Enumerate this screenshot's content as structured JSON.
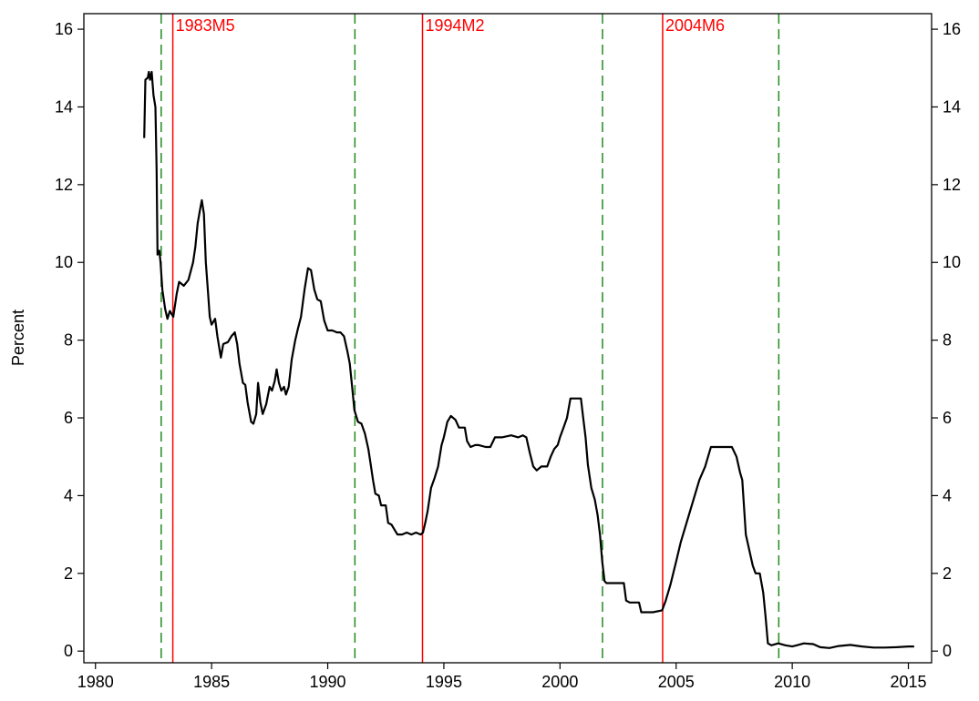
{
  "chart_data": {
    "type": "line",
    "title": "",
    "xlabel": "",
    "ylabel": "Percent",
    "xlim": [
      1979.5,
      2016.0
    ],
    "ylim": [
      -0.3,
      16.4
    ],
    "x_ticks": [
      1980,
      1985,
      1990,
      1995,
      2000,
      2005,
      2010,
      2015
    ],
    "y_ticks": [
      0,
      2,
      4,
      6,
      8,
      10,
      12,
      14,
      16
    ],
    "y_axis_right_duplicate": true,
    "grid": false,
    "legend": "none",
    "series": [
      {
        "color": "#000000",
        "points": [
          [
            1982.1,
            13.2
          ],
          [
            1982.15,
            14.7
          ],
          [
            1982.25,
            14.75
          ],
          [
            1982.3,
            14.9
          ],
          [
            1982.35,
            14.7
          ],
          [
            1982.42,
            14.9
          ],
          [
            1982.5,
            14.3
          ],
          [
            1982.58,
            14.0
          ],
          [
            1982.63,
            12.4
          ],
          [
            1982.67,
            10.2
          ],
          [
            1982.75,
            10.3
          ],
          [
            1982.8,
            10.0
          ],
          [
            1982.88,
            9.3
          ],
          [
            1983.0,
            8.8
          ],
          [
            1983.1,
            8.55
          ],
          [
            1983.2,
            8.75
          ],
          [
            1983.35,
            8.6
          ],
          [
            1983.5,
            9.2
          ],
          [
            1983.6,
            9.5
          ],
          [
            1983.8,
            9.4
          ],
          [
            1984.0,
            9.55
          ],
          [
            1984.2,
            10.0
          ],
          [
            1984.3,
            10.4
          ],
          [
            1984.4,
            11.0
          ],
          [
            1984.5,
            11.35
          ],
          [
            1984.58,
            11.6
          ],
          [
            1984.67,
            11.25
          ],
          [
            1984.75,
            10.0
          ],
          [
            1984.85,
            9.2
          ],
          [
            1984.92,
            8.6
          ],
          [
            1985.0,
            8.4
          ],
          [
            1985.15,
            8.55
          ],
          [
            1985.25,
            8.1
          ],
          [
            1985.4,
            7.55
          ],
          [
            1985.5,
            7.9
          ],
          [
            1985.7,
            7.95
          ],
          [
            1985.85,
            8.1
          ],
          [
            1986.0,
            8.2
          ],
          [
            1986.1,
            7.9
          ],
          [
            1986.2,
            7.4
          ],
          [
            1986.35,
            6.9
          ],
          [
            1986.45,
            6.85
          ],
          [
            1986.55,
            6.4
          ],
          [
            1986.7,
            5.9
          ],
          [
            1986.8,
            5.85
          ],
          [
            1986.92,
            6.1
          ],
          [
            1987.0,
            6.9
          ],
          [
            1987.1,
            6.4
          ],
          [
            1987.2,
            6.1
          ],
          [
            1987.35,
            6.35
          ],
          [
            1987.5,
            6.8
          ],
          [
            1987.6,
            6.7
          ],
          [
            1987.72,
            6.95
          ],
          [
            1987.8,
            7.25
          ],
          [
            1987.9,
            6.9
          ],
          [
            1988.0,
            6.7
          ],
          [
            1988.12,
            6.8
          ],
          [
            1988.2,
            6.6
          ],
          [
            1988.32,
            6.8
          ],
          [
            1988.45,
            7.5
          ],
          [
            1988.6,
            8.0
          ],
          [
            1988.72,
            8.3
          ],
          [
            1988.85,
            8.6
          ],
          [
            1989.0,
            9.3
          ],
          [
            1989.15,
            9.85
          ],
          [
            1989.28,
            9.8
          ],
          [
            1989.42,
            9.3
          ],
          [
            1989.55,
            9.05
          ],
          [
            1989.7,
            9.0
          ],
          [
            1989.85,
            8.5
          ],
          [
            1990.0,
            8.25
          ],
          [
            1990.2,
            8.25
          ],
          [
            1990.4,
            8.2
          ],
          [
            1990.55,
            8.2
          ],
          [
            1990.7,
            8.1
          ],
          [
            1990.85,
            7.7
          ],
          [
            1990.95,
            7.4
          ],
          [
            1991.05,
            6.8
          ],
          [
            1991.15,
            6.2
          ],
          [
            1991.3,
            5.9
          ],
          [
            1991.45,
            5.85
          ],
          [
            1991.6,
            5.6
          ],
          [
            1991.75,
            5.2
          ],
          [
            1991.85,
            4.8
          ],
          [
            1991.95,
            4.4
          ],
          [
            1992.05,
            4.05
          ],
          [
            1992.2,
            4.0
          ],
          [
            1992.3,
            3.75
          ],
          [
            1992.5,
            3.75
          ],
          [
            1992.6,
            3.3
          ],
          [
            1992.75,
            3.25
          ],
          [
            1992.9,
            3.1
          ],
          [
            1993.0,
            3.0
          ],
          [
            1993.2,
            3.0
          ],
          [
            1993.4,
            3.05
          ],
          [
            1993.6,
            3.0
          ],
          [
            1993.8,
            3.05
          ],
          [
            1994.0,
            3.0
          ],
          [
            1994.1,
            3.05
          ],
          [
            1994.2,
            3.3
          ],
          [
            1994.3,
            3.6
          ],
          [
            1994.45,
            4.2
          ],
          [
            1994.6,
            4.45
          ],
          [
            1994.75,
            4.75
          ],
          [
            1994.9,
            5.3
          ],
          [
            1995.0,
            5.5
          ],
          [
            1995.15,
            5.9
          ],
          [
            1995.3,
            6.05
          ],
          [
            1995.5,
            5.95
          ],
          [
            1995.65,
            5.75
          ],
          [
            1995.9,
            5.75
          ],
          [
            1996.0,
            5.4
          ],
          [
            1996.15,
            5.25
          ],
          [
            1996.35,
            5.3
          ],
          [
            1996.5,
            5.3
          ],
          [
            1996.8,
            5.25
          ],
          [
            1997.0,
            5.25
          ],
          [
            1997.2,
            5.5
          ],
          [
            1997.5,
            5.5
          ],
          [
            1997.9,
            5.55
          ],
          [
            1998.2,
            5.5
          ],
          [
            1998.4,
            5.55
          ],
          [
            1998.55,
            5.5
          ],
          [
            1998.7,
            5.1
          ],
          [
            1998.85,
            4.75
          ],
          [
            1999.0,
            4.65
          ],
          [
            1999.2,
            4.75
          ],
          [
            1999.45,
            4.75
          ],
          [
            1999.6,
            5.0
          ],
          [
            1999.75,
            5.2
          ],
          [
            1999.9,
            5.3
          ],
          [
            2000.0,
            5.5
          ],
          [
            2000.15,
            5.75
          ],
          [
            2000.3,
            6.0
          ],
          [
            2000.45,
            6.5
          ],
          [
            2000.6,
            6.5
          ],
          [
            2000.9,
            6.5
          ],
          [
            2001.0,
            6.0
          ],
          [
            2001.1,
            5.5
          ],
          [
            2001.2,
            4.8
          ],
          [
            2001.35,
            4.2
          ],
          [
            2001.5,
            3.9
          ],
          [
            2001.62,
            3.5
          ],
          [
            2001.72,
            3.0
          ],
          [
            2001.82,
            2.3
          ],
          [
            2001.92,
            1.8
          ],
          [
            2002.0,
            1.75
          ],
          [
            2002.4,
            1.75
          ],
          [
            2002.75,
            1.75
          ],
          [
            2002.85,
            1.3
          ],
          [
            2003.0,
            1.25
          ],
          [
            2003.4,
            1.25
          ],
          [
            2003.5,
            1.0
          ],
          [
            2003.75,
            1.0
          ],
          [
            2004.0,
            1.0
          ],
          [
            2004.4,
            1.05
          ],
          [
            2004.55,
            1.3
          ],
          [
            2004.75,
            1.7
          ],
          [
            2005.0,
            2.3
          ],
          [
            2005.2,
            2.8
          ],
          [
            2005.4,
            3.2
          ],
          [
            2005.6,
            3.6
          ],
          [
            2005.8,
            4.0
          ],
          [
            2006.0,
            4.4
          ],
          [
            2006.25,
            4.75
          ],
          [
            2006.5,
            5.25
          ],
          [
            2006.75,
            5.25
          ],
          [
            2007.0,
            5.25
          ],
          [
            2007.4,
            5.25
          ],
          [
            2007.6,
            5.0
          ],
          [
            2007.75,
            4.6
          ],
          [
            2007.85,
            4.4
          ],
          [
            2008.0,
            3.0
          ],
          [
            2008.15,
            2.6
          ],
          [
            2008.3,
            2.2
          ],
          [
            2008.42,
            2.0
          ],
          [
            2008.6,
            2.0
          ],
          [
            2008.75,
            1.5
          ],
          [
            2008.85,
            0.9
          ],
          [
            2008.95,
            0.2
          ],
          [
            2009.1,
            0.15
          ],
          [
            2009.4,
            0.2
          ],
          [
            2009.7,
            0.15
          ],
          [
            2010.0,
            0.12
          ],
          [
            2010.2,
            0.15
          ],
          [
            2010.5,
            0.2
          ],
          [
            2010.9,
            0.18
          ],
          [
            2011.2,
            0.1
          ],
          [
            2011.6,
            0.08
          ],
          [
            2012.0,
            0.13
          ],
          [
            2012.5,
            0.16
          ],
          [
            2013.0,
            0.12
          ],
          [
            2013.5,
            0.09
          ],
          [
            2014.0,
            0.09
          ],
          [
            2014.5,
            0.1
          ],
          [
            2015.0,
            0.12
          ],
          [
            2015.25,
            0.12
          ]
        ]
      }
    ],
    "vertical_lines": [
      {
        "x": 1982.83,
        "style": "dashed",
        "color": "#228B22",
        "label": ""
      },
      {
        "x": 1983.33,
        "style": "solid",
        "color": "#FF0000",
        "label": "1983M5"
      },
      {
        "x": 1991.17,
        "style": "dashed",
        "color": "#228B22",
        "label": ""
      },
      {
        "x": 1994.08,
        "style": "solid",
        "color": "#FF0000",
        "label": "1994M2"
      },
      {
        "x": 2001.83,
        "style": "dashed",
        "color": "#228B22",
        "label": ""
      },
      {
        "x": 2004.42,
        "style": "solid",
        "color": "#FF0000",
        "label": "2004M6"
      },
      {
        "x": 2009.42,
        "style": "dashed",
        "color": "#228B22",
        "label": ""
      }
    ]
  }
}
